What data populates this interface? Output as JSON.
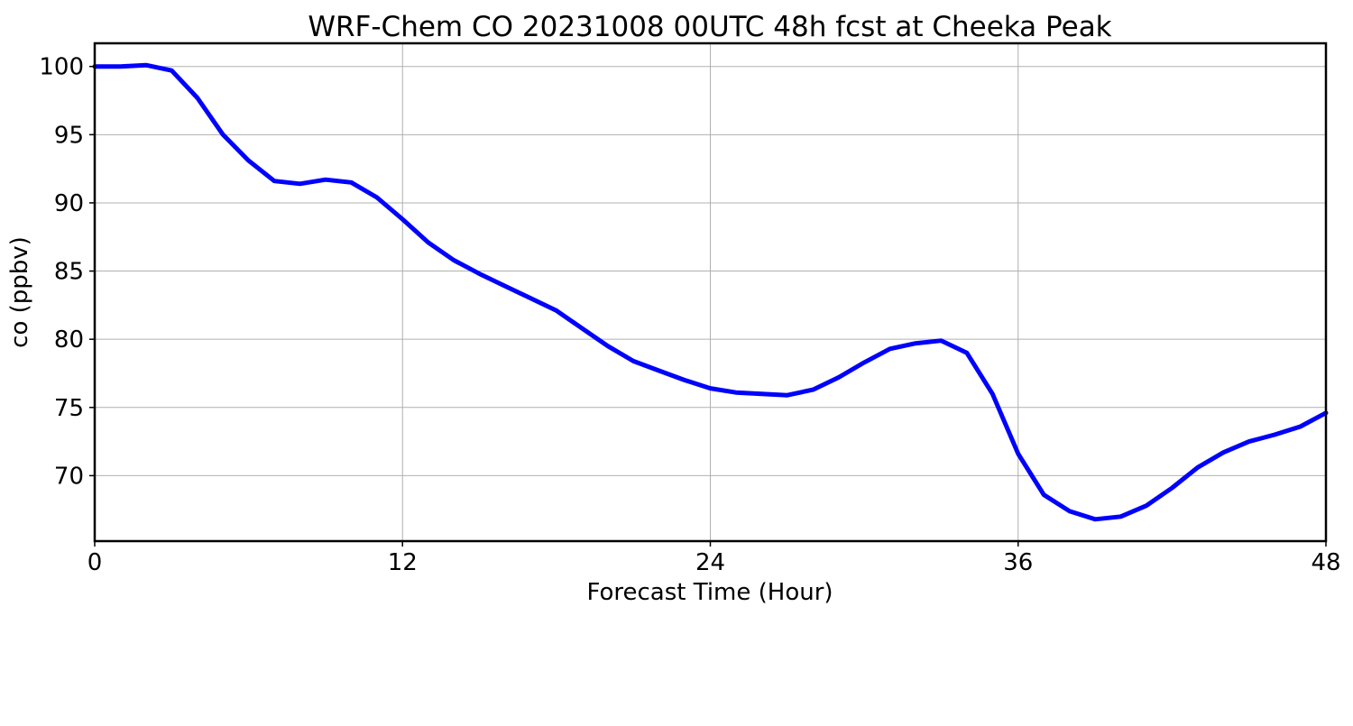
{
  "chart_data": {
    "type": "line",
    "title": "WRF-Chem CO  20231008 00UTC 48h fcst at Cheeka Peak",
    "xlabel": "Forecast Time (Hour)",
    "ylabel": "co  (ppbv)",
    "xlim": [
      0,
      48
    ],
    "ylim": [
      65.2,
      101.7
    ],
    "xticks": [
      0,
      12,
      24,
      36,
      48
    ],
    "yticks": [
      70,
      75,
      80,
      85,
      90,
      95,
      100
    ],
    "grid": true,
    "line_color": "#0000ff",
    "series": [
      {
        "x": [
          0,
          1,
          2,
          3,
          4,
          5,
          6,
          7,
          8,
          9,
          10,
          11,
          12,
          13,
          14,
          15,
          16,
          17,
          18,
          19,
          20,
          21,
          22,
          23,
          24,
          25,
          26,
          27,
          28,
          29,
          30,
          31,
          32,
          33,
          34,
          35,
          36,
          37,
          38,
          39,
          40,
          41,
          42,
          43,
          44,
          45,
          46,
          47,
          48
        ],
        "values": [
          100.0,
          100.0,
          100.1,
          99.7,
          97.7,
          95.0,
          93.1,
          91.6,
          91.4,
          91.7,
          91.5,
          90.4,
          88.8,
          87.1,
          85.8,
          84.8,
          83.9,
          83.0,
          82.1,
          80.8,
          79.5,
          78.4,
          77.7,
          77.0,
          76.4,
          76.1,
          76.0,
          75.9,
          76.3,
          77.2,
          78.3,
          79.3,
          79.7,
          79.9,
          79.0,
          76.0,
          71.6,
          68.6,
          67.4,
          66.8,
          67.0,
          67.8,
          69.1,
          70.6,
          71.7,
          72.5,
          73.0,
          73.6,
          74.6
        ]
      }
    ]
  }
}
